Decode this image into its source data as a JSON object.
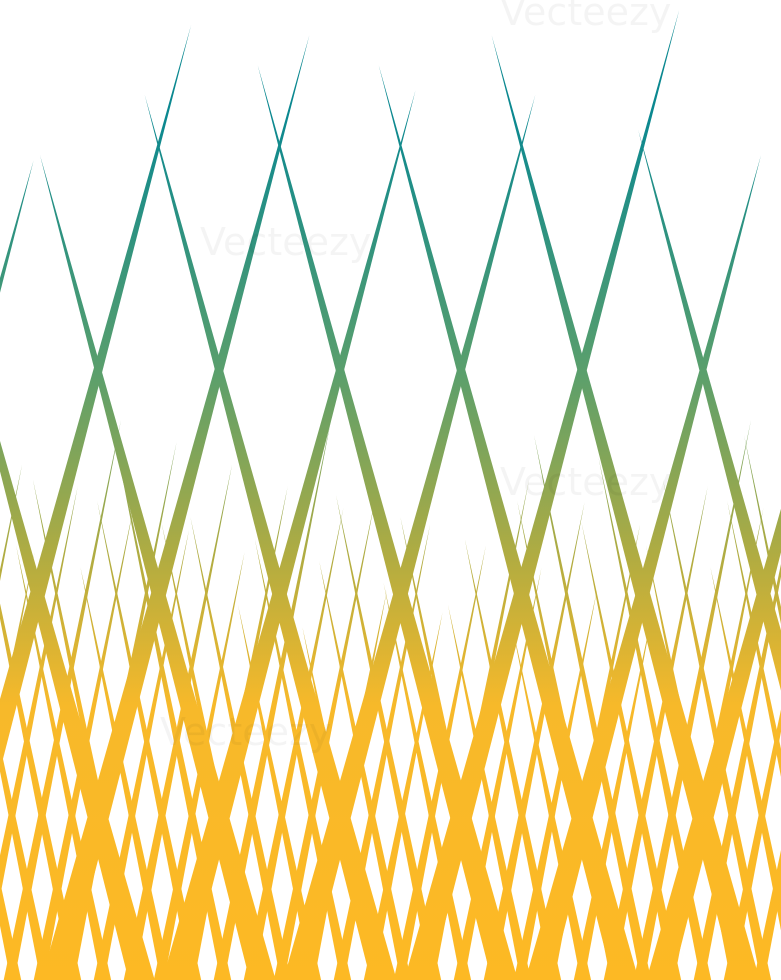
{
  "watermark": {
    "text": "Vecteezy"
  }
}
